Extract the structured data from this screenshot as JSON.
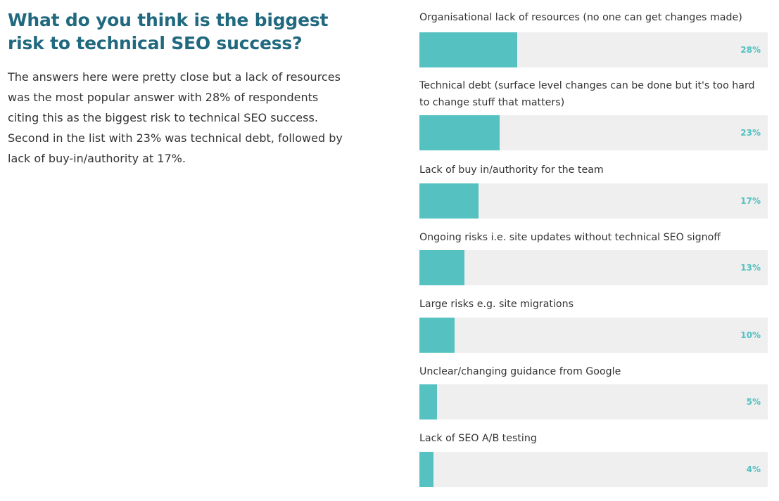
{
  "title": "What do you think is the biggest risk to technical SEO success?",
  "intro": "The answers here were pretty close but a lack of resources was the most popular answer with 28% of respondents citing this as the biggest risk to technical SEO success. Second in the list with 23% was technical debt, followed by lack of buy-in/authority at 17%.",
  "colors": {
    "title": "#21697f",
    "bar": "#55c1c1",
    "track": "#efefef",
    "text": "#333333"
  },
  "chart_data": {
    "type": "bar",
    "orientation": "horizontal",
    "categories": [
      "Organisational lack of resources (no one can get changes made)",
      "Technical debt (surface level changes can be done but it's too hard to change stuff that matters)",
      "Lack of buy in/authority for the team",
      "Ongoing risks i.e. site updates without technical SEO signoff",
      "Large risks e.g. site migrations",
      "Unclear/changing guidance from Google",
      "Lack of SEO A/B testing"
    ],
    "values": [
      28,
      23,
      17,
      13,
      10,
      5,
      4
    ],
    "value_labels": [
      "28%",
      "23%",
      "17%",
      "13%",
      "10%",
      "5%",
      "4%"
    ],
    "xlim": [
      0,
      100
    ],
    "grid": false,
    "legend": "none"
  }
}
